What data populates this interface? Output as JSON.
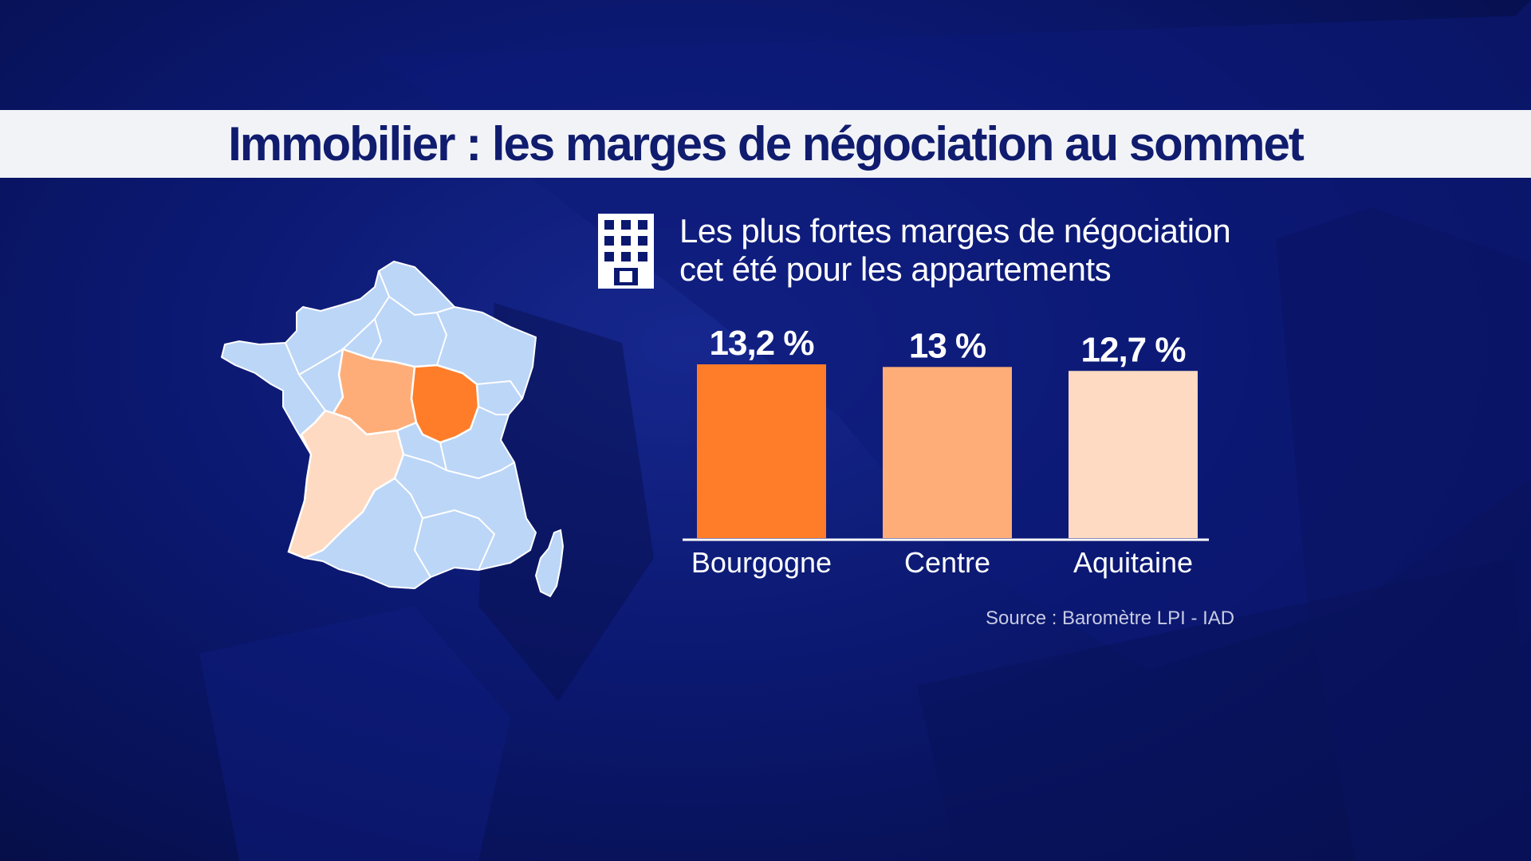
{
  "headline": "Immobilier : les marges de négociation au sommet",
  "subtitle_lines": [
    "Les plus fortes marges de négociation",
    "cet été pour les appartements"
  ],
  "source": "Source : Baromètre LPI - IAD",
  "icon": "building-icon",
  "colors": {
    "background": "#0b1870",
    "title_band": "#f2f3f7",
    "title_text": "#101c6e",
    "map_default": "#bcd6f7",
    "map_border": "#ffffff"
  },
  "map_highlights": [
    {
      "region": "Bourgogne",
      "color": "#ff7d29"
    },
    {
      "region": "Centre",
      "color": "#ffad78"
    },
    {
      "region": "Aquitaine",
      "color": "#ffdac2"
    }
  ],
  "chart_data": {
    "type": "bar",
    "title": "Les plus fortes marges de négociation cet été pour les appartements",
    "categories": [
      "Bourgogne",
      "Centre",
      "Aquitaine"
    ],
    "values": [
      13.2,
      13.0,
      12.7
    ],
    "value_labels": [
      "13,2 %",
      "13 %",
      "12,7 %"
    ],
    "colors": [
      "#ff7d29",
      "#ffad78",
      "#ffdac2"
    ],
    "ylim": [
      0,
      13.2
    ],
    "xlabel": "",
    "ylabel": "",
    "grid": false,
    "legend": "none"
  }
}
